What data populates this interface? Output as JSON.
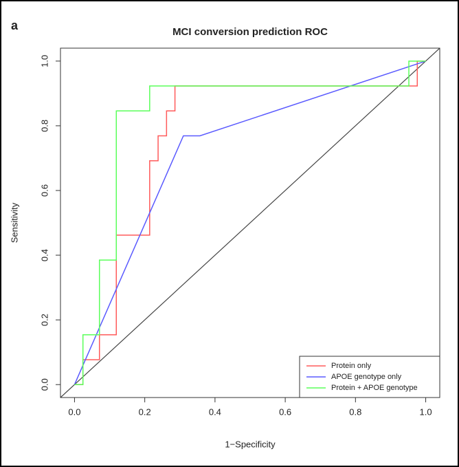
{
  "panel_label": "a",
  "chart_data": {
    "type": "line",
    "title": "MCI conversion prediction ROC",
    "xlabel": "1−Specificity",
    "ylabel": "Sensitivity",
    "xlim": [
      -0.04,
      1.04
    ],
    "ylim": [
      -0.04,
      1.04
    ],
    "xticks": [
      {
        "value": 0,
        "label": "0.0"
      },
      {
        "value": 0.2,
        "label": "0.2"
      },
      {
        "value": 0.4,
        "label": "0.4"
      },
      {
        "value": 0.6,
        "label": "0.6"
      },
      {
        "value": 0.8,
        "label": "0.8"
      },
      {
        "value": 1,
        "label": "1.0"
      }
    ],
    "yticks": [
      {
        "value": 0,
        "label": "0.0"
      },
      {
        "value": 0.2,
        "label": "0.2"
      },
      {
        "value": 0.4,
        "label": "0.4"
      },
      {
        "value": 0.6,
        "label": "0.6"
      },
      {
        "value": 0.8,
        "label": "0.8"
      },
      {
        "value": 1,
        "label": "1.0"
      }
    ],
    "legend": "bottom-right",
    "series": [
      {
        "name": "Protein only",
        "color": "#ff5a5a",
        "x": [
          0,
          0.024,
          0.024,
          0.071,
          0.071,
          0.119,
          0.119,
          0.214,
          0.214,
          0.238,
          0.238,
          0.262,
          0.262,
          0.286,
          0.286,
          0.976,
          0.976,
          1
        ],
        "values": [
          0,
          0,
          0.077,
          0.077,
          0.154,
          0.154,
          0.462,
          0.462,
          0.692,
          0.692,
          0.769,
          0.769,
          0.846,
          0.846,
          0.923,
          0.923,
          1,
          1
        ]
      },
      {
        "name": "APOE genotype only",
        "color": "#5a5aff",
        "x": [
          0,
          0.31,
          0.357,
          1
        ],
        "values": [
          0,
          0.769,
          0.769,
          1
        ]
      },
      {
        "name": "Protein + APOE genotype",
        "color": "#5aff5a",
        "x": [
          0,
          0.024,
          0.024,
          0.071,
          0.071,
          0.119,
          0.119,
          0.214,
          0.214,
          0.952,
          0.952,
          1
        ],
        "values": [
          0,
          0,
          0.154,
          0.154,
          0.385,
          0.385,
          0.846,
          0.846,
          0.923,
          0.923,
          1,
          1
        ]
      }
    ]
  }
}
